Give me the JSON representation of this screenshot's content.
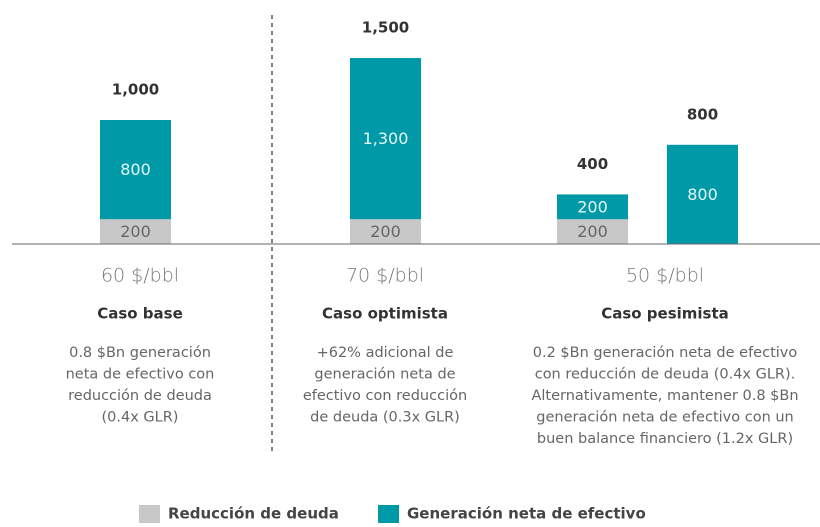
{
  "chart_data": {
    "type": "bar",
    "stacked": true,
    "categories": [
      null,
      null,
      null,
      null
    ],
    "series": [
      {
        "name": "Reducción de deuda",
        "color": "#c8c8c8",
        "values": [
          200,
          200,
          200,
          null
        ]
      },
      {
        "name": "Generación neta de efectivo",
        "color": "#0099a8",
        "values": [
          800,
          1300,
          200,
          800
        ],
        "value_labels": [
          "800",
          "1,300",
          "200",
          "800"
        ]
      }
    ],
    "total_labels": [
      "1,000",
      "1,500",
      "400",
      "800"
    ],
    "groups": [
      {
        "price": "60 $/bbl",
        "name": "Caso base",
        "description": [
          "0.8 $Bn generación",
          "neta de efectivo con",
          "reducción de deuda",
          "(0.4x GLR)"
        ]
      },
      {
        "price": "70 $/bbl",
        "name": "Caso optimista",
        "description": [
          "+62% adicional de",
          "generación neta de",
          "efectivo con reducción",
          "de deuda (0.3x GLR)"
        ]
      },
      {
        "price": "50 $/bbl",
        "name": "Caso pesimista",
        "description": [
          "0.2 $Bn generación neta de efectivo",
          "con reducción de deuda (0.4x GLR).",
          "Alternativamente, mantener 0.8 $Bn",
          "generación neta de efectivo con un",
          "buen balance financiero (1.2x GLR)"
        ]
      }
    ]
  }
}
